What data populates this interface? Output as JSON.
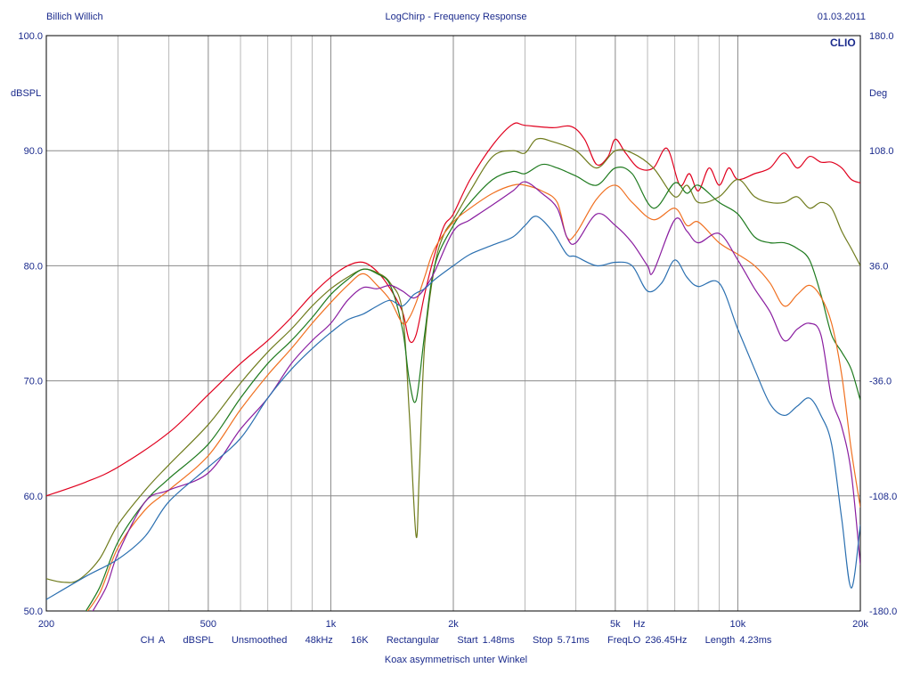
{
  "header": {
    "left": "Billich Willich",
    "center": "LogChirp - Frequency Response",
    "right": "01.03.2011"
  },
  "brand": "CLIO",
  "footer": {
    "params": [
      "CH A",
      "dBSPL",
      "Unsmoothed",
      "48kHz",
      "16K",
      "Rectangular",
      "Start 1.48ms",
      "Stop 5.71ms",
      "FreqLO 236.45Hz",
      "Length 4.23ms"
    ],
    "caption": "Koax asymmetrisch unter Winkel"
  },
  "chart_data": {
    "type": "line",
    "title": "LogChirp - Frequency Response",
    "xscale": "log",
    "xlim": [
      200,
      20000
    ],
    "ylim": [
      50,
      100
    ],
    "y2lim": [
      -180,
      180
    ],
    "ylabel": "dBSPL",
    "y2label": "Deg",
    "xlabel_unit": "Hz",
    "grid": true,
    "x_ticks": [
      {
        "value": 200,
        "label": "200"
      },
      {
        "value": 500,
        "label": "500"
      },
      {
        "value": 1000,
        "label": "1k"
      },
      {
        "value": 2000,
        "label": "2k"
      },
      {
        "value": 5000,
        "label": "5k"
      },
      {
        "value": 10000,
        "label": "10k"
      },
      {
        "value": 20000,
        "label": "20k"
      }
    ],
    "y_ticks": [
      {
        "value": 50,
        "label": "50.0"
      },
      {
        "value": 60,
        "label": "60.0"
      },
      {
        "value": 70,
        "label": "70.0"
      },
      {
        "value": 80,
        "label": "80.0"
      },
      {
        "value": 90,
        "label": "90.0"
      },
      {
        "value": 100,
        "label": "100.0"
      }
    ],
    "y2_ticks": [
      {
        "value": -180,
        "label": "-180.0"
      },
      {
        "value": -108,
        "label": "-108.0"
      },
      {
        "value": -36,
        "label": "-36.0"
      },
      {
        "value": 36,
        "label": "36.0"
      },
      {
        "value": 108,
        "label": "108.0"
      },
      {
        "value": 180,
        "label": "180.0"
      }
    ],
    "series": [
      {
        "color": "#e0001e",
        "points": [
          [
            200,
            60
          ],
          [
            250,
            61.2
          ],
          [
            300,
            62.5
          ],
          [
            400,
            65.5
          ],
          [
            500,
            68.8
          ],
          [
            600,
            71.5
          ],
          [
            700,
            73.5
          ],
          [
            800,
            75.5
          ],
          [
            900,
            77.5
          ],
          [
            1000,
            79
          ],
          [
            1100,
            80
          ],
          [
            1200,
            80.3
          ],
          [
            1300,
            79.5
          ],
          [
            1400,
            78
          ],
          [
            1500,
            76
          ],
          [
            1560,
            73.5
          ],
          [
            1620,
            74
          ],
          [
            1700,
            77.5
          ],
          [
            1800,
            81
          ],
          [
            1900,
            83.5
          ],
          [
            2000,
            84.5
          ],
          [
            2200,
            87.5
          ],
          [
            2500,
            90.5
          ],
          [
            2800,
            92.3
          ],
          [
            3000,
            92.2
          ],
          [
            3500,
            92
          ],
          [
            3900,
            92.1
          ],
          [
            4200,
            91
          ],
          [
            4500,
            88.8
          ],
          [
            4800,
            89.5
          ],
          [
            5000,
            91
          ],
          [
            5300,
            89.8
          ],
          [
            5700,
            88.5
          ],
          [
            6200,
            88.5
          ],
          [
            6700,
            90.2
          ],
          [
            7200,
            87
          ],
          [
            7600,
            88
          ],
          [
            8000,
            86.5
          ],
          [
            8500,
            88.5
          ],
          [
            9000,
            87
          ],
          [
            9500,
            88.5
          ],
          [
            10000,
            87.5
          ],
          [
            11000,
            88
          ],
          [
            12000,
            88.5
          ],
          [
            13000,
            89.8
          ],
          [
            14000,
            88.5
          ],
          [
            15000,
            89.5
          ],
          [
            16000,
            89
          ],
          [
            17000,
            89
          ],
          [
            18000,
            88.5
          ],
          [
            19000,
            87.5
          ],
          [
            20000,
            87.2
          ]
        ]
      },
      {
        "color": "#6f7b1c",
        "points": [
          [
            200,
            52.8
          ],
          [
            220,
            52.5
          ],
          [
            240,
            52.7
          ],
          [
            270,
            54.5
          ],
          [
            300,
            57.5
          ],
          [
            350,
            60.5
          ],
          [
            400,
            62.7
          ],
          [
            500,
            66.2
          ],
          [
            600,
            69.8
          ],
          [
            700,
            72.5
          ],
          [
            800,
            74.5
          ],
          [
            900,
            76.5
          ],
          [
            1000,
            78
          ],
          [
            1100,
            79
          ],
          [
            1200,
            79.7
          ],
          [
            1300,
            79.4
          ],
          [
            1400,
            78.5
          ],
          [
            1500,
            76
          ],
          [
            1560,
            67
          ],
          [
            1620,
            56.5
          ],
          [
            1650,
            62
          ],
          [
            1700,
            73
          ],
          [
            1800,
            80
          ],
          [
            1900,
            82.8
          ],
          [
            2000,
            84
          ],
          [
            2200,
            86.5
          ],
          [
            2500,
            89.5
          ],
          [
            2800,
            90
          ],
          [
            3000,
            89.8
          ],
          [
            3200,
            91
          ],
          [
            3500,
            90.8
          ],
          [
            4000,
            90
          ],
          [
            4500,
            88.5
          ],
          [
            5000,
            90
          ],
          [
            5500,
            89.8
          ],
          [
            6200,
            88.5
          ],
          [
            7000,
            86
          ],
          [
            7500,
            87
          ],
          [
            8000,
            85.5
          ],
          [
            9000,
            86
          ],
          [
            10000,
            87.5
          ],
          [
            11000,
            86
          ],
          [
            12000,
            85.5
          ],
          [
            13000,
            85.5
          ],
          [
            14000,
            86
          ],
          [
            15000,
            85
          ],
          [
            16000,
            85.5
          ],
          [
            17000,
            85
          ],
          [
            18000,
            83
          ],
          [
            19000,
            81.5
          ],
          [
            20000,
            80
          ]
        ]
      },
      {
        "color": "#1e7a1e",
        "points": [
          [
            240,
            49
          ],
          [
            270,
            52
          ],
          [
            300,
            56
          ],
          [
            350,
            59.5
          ],
          [
            400,
            61.5
          ],
          [
            500,
            64.5
          ],
          [
            600,
            68.5
          ],
          [
            700,
            71.5
          ],
          [
            800,
            73.5
          ],
          [
            900,
            75.5
          ],
          [
            1000,
            77.5
          ],
          [
            1100,
            78.8
          ],
          [
            1200,
            79.7
          ],
          [
            1300,
            79.3
          ],
          [
            1400,
            78.3
          ],
          [
            1500,
            74.5
          ],
          [
            1560,
            70
          ],
          [
            1620,
            68.3
          ],
          [
            1700,
            74
          ],
          [
            1800,
            80
          ],
          [
            2000,
            83.5
          ],
          [
            2200,
            85.5
          ],
          [
            2500,
            87.5
          ],
          [
            2800,
            88.2
          ],
          [
            3000,
            88
          ],
          [
            3300,
            88.8
          ],
          [
            3600,
            88.5
          ],
          [
            4000,
            87.8
          ],
          [
            4500,
            87
          ],
          [
            5000,
            88.5
          ],
          [
            5500,
            88
          ],
          [
            6200,
            85
          ],
          [
            7000,
            87.2
          ],
          [
            7500,
            86.3
          ],
          [
            8000,
            87
          ],
          [
            9000,
            85.5
          ],
          [
            10000,
            84.5
          ],
          [
            11000,
            82.5
          ],
          [
            12000,
            82
          ],
          [
            13000,
            82
          ],
          [
            14000,
            81.5
          ],
          [
            15000,
            80.5
          ],
          [
            16000,
            77.5
          ],
          [
            17000,
            74
          ],
          [
            18000,
            72.5
          ],
          [
            19000,
            71
          ],
          [
            20000,
            68.3
          ]
        ]
      },
      {
        "color": "#f07020",
        "points": [
          [
            240,
            49
          ],
          [
            270,
            51.5
          ],
          [
            300,
            55.5
          ],
          [
            350,
            58.8
          ],
          [
            400,
            60.5
          ],
          [
            500,
            63.5
          ],
          [
            600,
            67.5
          ],
          [
            700,
            70.5
          ],
          [
            800,
            72.8
          ],
          [
            900,
            75
          ],
          [
            1000,
            76.8
          ],
          [
            1100,
            78.3
          ],
          [
            1200,
            79.3
          ],
          [
            1300,
            78.3
          ],
          [
            1400,
            77
          ],
          [
            1500,
            75
          ],
          [
            1560,
            75.5
          ],
          [
            1620,
            76.8
          ],
          [
            1700,
            79
          ],
          [
            1800,
            81.5
          ],
          [
            2000,
            83.8
          ],
          [
            2200,
            85
          ],
          [
            2500,
            86.3
          ],
          [
            2800,
            87
          ],
          [
            3000,
            87
          ],
          [
            3300,
            86.5
          ],
          [
            3600,
            85.5
          ],
          [
            3800,
            82.5
          ],
          [
            4000,
            82.8
          ],
          [
            4500,
            85.8
          ],
          [
            5000,
            87
          ],
          [
            5500,
            85.5
          ],
          [
            6200,
            84
          ],
          [
            7000,
            85
          ],
          [
            7500,
            83.5
          ],
          [
            8000,
            83.8
          ],
          [
            9000,
            82
          ],
          [
            10000,
            81
          ],
          [
            11000,
            80
          ],
          [
            12000,
            78.5
          ],
          [
            13000,
            76.5
          ],
          [
            14000,
            77.5
          ],
          [
            15000,
            78.3
          ],
          [
            16000,
            77.3
          ],
          [
            17000,
            75
          ],
          [
            18000,
            70.5
          ],
          [
            19000,
            64
          ],
          [
            20000,
            59
          ]
        ]
      },
      {
        "color": "#8a1ea0",
        "points": [
          [
            250,
            49
          ],
          [
            280,
            52
          ],
          [
            300,
            55
          ],
          [
            350,
            59.5
          ],
          [
            400,
            60.5
          ],
          [
            500,
            62
          ],
          [
            600,
            65.8
          ],
          [
            700,
            68.5
          ],
          [
            800,
            71.5
          ],
          [
            900,
            73.5
          ],
          [
            1000,
            75
          ],
          [
            1100,
            77
          ],
          [
            1200,
            78.1
          ],
          [
            1300,
            78
          ],
          [
            1400,
            78.3
          ],
          [
            1500,
            77.8
          ],
          [
            1600,
            77.2
          ],
          [
            1700,
            78
          ],
          [
            1800,
            79.5
          ],
          [
            2000,
            83
          ],
          [
            2200,
            84
          ],
          [
            2500,
            85.3
          ],
          [
            2800,
            86.5
          ],
          [
            3000,
            87.3
          ],
          [
            3300,
            86.3
          ],
          [
            3600,
            85
          ],
          [
            3800,
            82.5
          ],
          [
            4000,
            82
          ],
          [
            4500,
            84.5
          ],
          [
            5000,
            83.5
          ],
          [
            5500,
            82
          ],
          [
            6000,
            80
          ],
          [
            6200,
            79.5
          ],
          [
            7000,
            84
          ],
          [
            7500,
            83
          ],
          [
            8000,
            82
          ],
          [
            9000,
            82.8
          ],
          [
            10000,
            80.5
          ],
          [
            11000,
            78
          ],
          [
            12000,
            76
          ],
          [
            13000,
            73.5
          ],
          [
            14000,
            74.5
          ],
          [
            15000,
            75
          ],
          [
            16000,
            74
          ],
          [
            17000,
            68.5
          ],
          [
            18000,
            66
          ],
          [
            19000,
            62
          ],
          [
            20000,
            54
          ]
        ]
      },
      {
        "color": "#2a6fb0",
        "points": [
          [
            200,
            51
          ],
          [
            250,
            53
          ],
          [
            300,
            54.5
          ],
          [
            350,
            56.5
          ],
          [
            400,
            59.5
          ],
          [
            500,
            62.5
          ],
          [
            600,
            65
          ],
          [
            700,
            68.5
          ],
          [
            800,
            71
          ],
          [
            900,
            72.8
          ],
          [
            1000,
            74.2
          ],
          [
            1100,
            75.3
          ],
          [
            1200,
            75.8
          ],
          [
            1300,
            76.5
          ],
          [
            1400,
            77
          ],
          [
            1500,
            76.5
          ],
          [
            1600,
            77.5
          ],
          [
            1700,
            78
          ],
          [
            1800,
            78.8
          ],
          [
            2000,
            80
          ],
          [
            2200,
            81
          ],
          [
            2500,
            81.8
          ],
          [
            2800,
            82.5
          ],
          [
            3000,
            83.5
          ],
          [
            3200,
            84.3
          ],
          [
            3500,
            83
          ],
          [
            3800,
            81
          ],
          [
            4000,
            80.8
          ],
          [
            4500,
            80
          ],
          [
            5000,
            80.3
          ],
          [
            5500,
            80
          ],
          [
            6000,
            77.8
          ],
          [
            6500,
            78.5
          ],
          [
            7000,
            80.5
          ],
          [
            7500,
            79
          ],
          [
            8000,
            78.2
          ],
          [
            9000,
            78.5
          ],
          [
            10000,
            74.5
          ],
          [
            11000,
            71
          ],
          [
            12000,
            68
          ],
          [
            13000,
            67
          ],
          [
            14000,
            67.8
          ],
          [
            15000,
            68.5
          ],
          [
            16000,
            67
          ],
          [
            17000,
            64.5
          ],
          [
            18000,
            58
          ],
          [
            19000,
            52
          ],
          [
            20000,
            57.5
          ]
        ]
      }
    ]
  }
}
